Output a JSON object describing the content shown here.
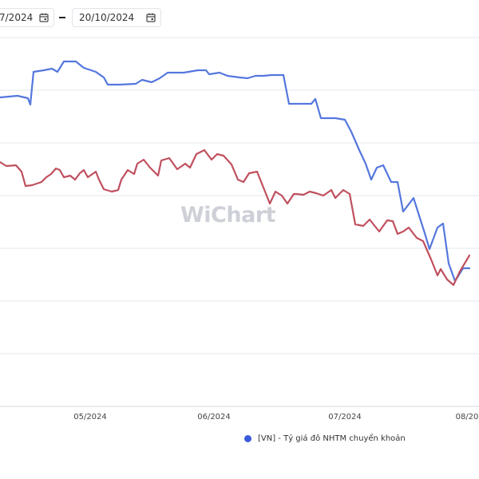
{
  "controls": {
    "date_from": "7/2024",
    "date_to": "20/10/2024",
    "calendar_icon": "calendar-icon"
  },
  "watermark": {
    "logo_text": "WiChart"
  },
  "legend": {
    "label": "[VN] - Tỷ giá đô NHTM chuyển khoản",
    "color": "#3b5bdb"
  },
  "colors": {
    "blue_series": "#5577dd",
    "red_series": "#c0505e",
    "grid": "#e6e7eb"
  },
  "chart_data": {
    "type": "line",
    "x_tick_labels": [
      "05/2024",
      "06/2024",
      "07/2024",
      "08/20"
    ],
    "grid": "horizontal",
    "legend_position": "bottom-right",
    "series": [
      {
        "name": "[VN] - Tỷ giá đô NHTM chuyển khoản",
        "color": "#5577dd",
        "values": [
          [
            0,
            122
          ],
          [
            22,
            120
          ],
          [
            35,
            123
          ],
          [
            38,
            131
          ],
          [
            42,
            90
          ],
          [
            55,
            88
          ],
          [
            65,
            86
          ],
          [
            72,
            90
          ],
          [
            80,
            77
          ],
          [
            95,
            77
          ],
          [
            105,
            85
          ],
          [
            120,
            90
          ],
          [
            130,
            97
          ],
          [
            135,
            106
          ],
          [
            150,
            106
          ],
          [
            170,
            105
          ],
          [
            178,
            100
          ],
          [
            190,
            103
          ],
          [
            200,
            98
          ],
          [
            210,
            91
          ],
          [
            230,
            91
          ],
          [
            248,
            88
          ],
          [
            258,
            88
          ],
          [
            262,
            93
          ],
          [
            275,
            91
          ],
          [
            285,
            95
          ],
          [
            300,
            97
          ],
          [
            310,
            98
          ],
          [
            320,
            95
          ],
          [
            330,
            95
          ],
          [
            340,
            94
          ],
          [
            355,
            94
          ],
          [
            362,
            130
          ],
          [
            375,
            130
          ],
          [
            390,
            130
          ],
          [
            395,
            124
          ],
          [
            402,
            148
          ],
          [
            420,
            148
          ],
          [
            432,
            150
          ],
          [
            440,
            165
          ],
          [
            450,
            188
          ],
          [
            458,
            205
          ],
          [
            465,
            225
          ],
          [
            472,
            210
          ],
          [
            480,
            207
          ],
          [
            490,
            228
          ],
          [
            498,
            228
          ],
          [
            505,
            265
          ],
          [
            518,
            248
          ],
          [
            525,
            270
          ],
          [
            532,
            292
          ],
          [
            538,
            312
          ],
          [
            548,
            285
          ],
          [
            555,
            280
          ],
          [
            562,
            330
          ],
          [
            570,
            352
          ],
          [
            580,
            336
          ],
          [
            588,
            336
          ]
        ]
      },
      {
        "name": "",
        "color": "#c0505e",
        "values": [
          [
            0,
            203
          ],
          [
            8,
            208
          ],
          [
            20,
            207
          ],
          [
            27,
            215
          ],
          [
            32,
            233
          ],
          [
            40,
            232
          ],
          [
            52,
            228
          ],
          [
            58,
            222
          ],
          [
            64,
            218
          ],
          [
            70,
            211
          ],
          [
            75,
            213
          ],
          [
            80,
            222
          ],
          [
            88,
            220
          ],
          [
            94,
            225
          ],
          [
            100,
            217
          ],
          [
            105,
            213
          ],
          [
            110,
            222
          ],
          [
            120,
            215
          ],
          [
            124,
            225
          ],
          [
            130,
            237
          ],
          [
            140,
            240
          ],
          [
            148,
            238
          ],
          [
            152,
            225
          ],
          [
            160,
            213
          ],
          [
            168,
            218
          ],
          [
            172,
            205
          ],
          [
            180,
            200
          ],
          [
            188,
            210
          ],
          [
            198,
            220
          ],
          [
            202,
            201
          ],
          [
            212,
            198
          ],
          [
            222,
            212
          ],
          [
            232,
            205
          ],
          [
            238,
            210
          ],
          [
            246,
            193
          ],
          [
            256,
            188
          ],
          [
            265,
            200
          ],
          [
            272,
            193
          ],
          [
            280,
            195
          ],
          [
            290,
            206
          ],
          [
            298,
            225
          ],
          [
            305,
            228
          ],
          [
            312,
            217
          ],
          [
            322,
            215
          ],
          [
            330,
            235
          ],
          [
            338,
            255
          ],
          [
            345,
            240
          ],
          [
            353,
            245
          ],
          [
            360,
            255
          ],
          [
            368,
            243
          ],
          [
            372,
            243
          ],
          [
            380,
            244
          ],
          [
            388,
            240
          ],
          [
            396,
            242
          ],
          [
            405,
            245
          ],
          [
            415,
            238
          ],
          [
            420,
            248
          ],
          [
            430,
            238
          ],
          [
            438,
            243
          ],
          [
            445,
            281
          ],
          [
            455,
            283
          ],
          [
            463,
            275
          ],
          [
            475,
            290
          ],
          [
            485,
            276
          ],
          [
            492,
            277
          ],
          [
            498,
            293
          ],
          [
            505,
            290
          ],
          [
            512,
            285
          ],
          [
            522,
            298
          ],
          [
            530,
            302
          ],
          [
            540,
            325
          ],
          [
            548,
            345
          ],
          [
            552,
            337
          ],
          [
            560,
            350
          ],
          [
            568,
            357
          ],
          [
            576,
            340
          ],
          [
            582,
            330
          ],
          [
            588,
            320
          ]
        ]
      }
    ]
  }
}
